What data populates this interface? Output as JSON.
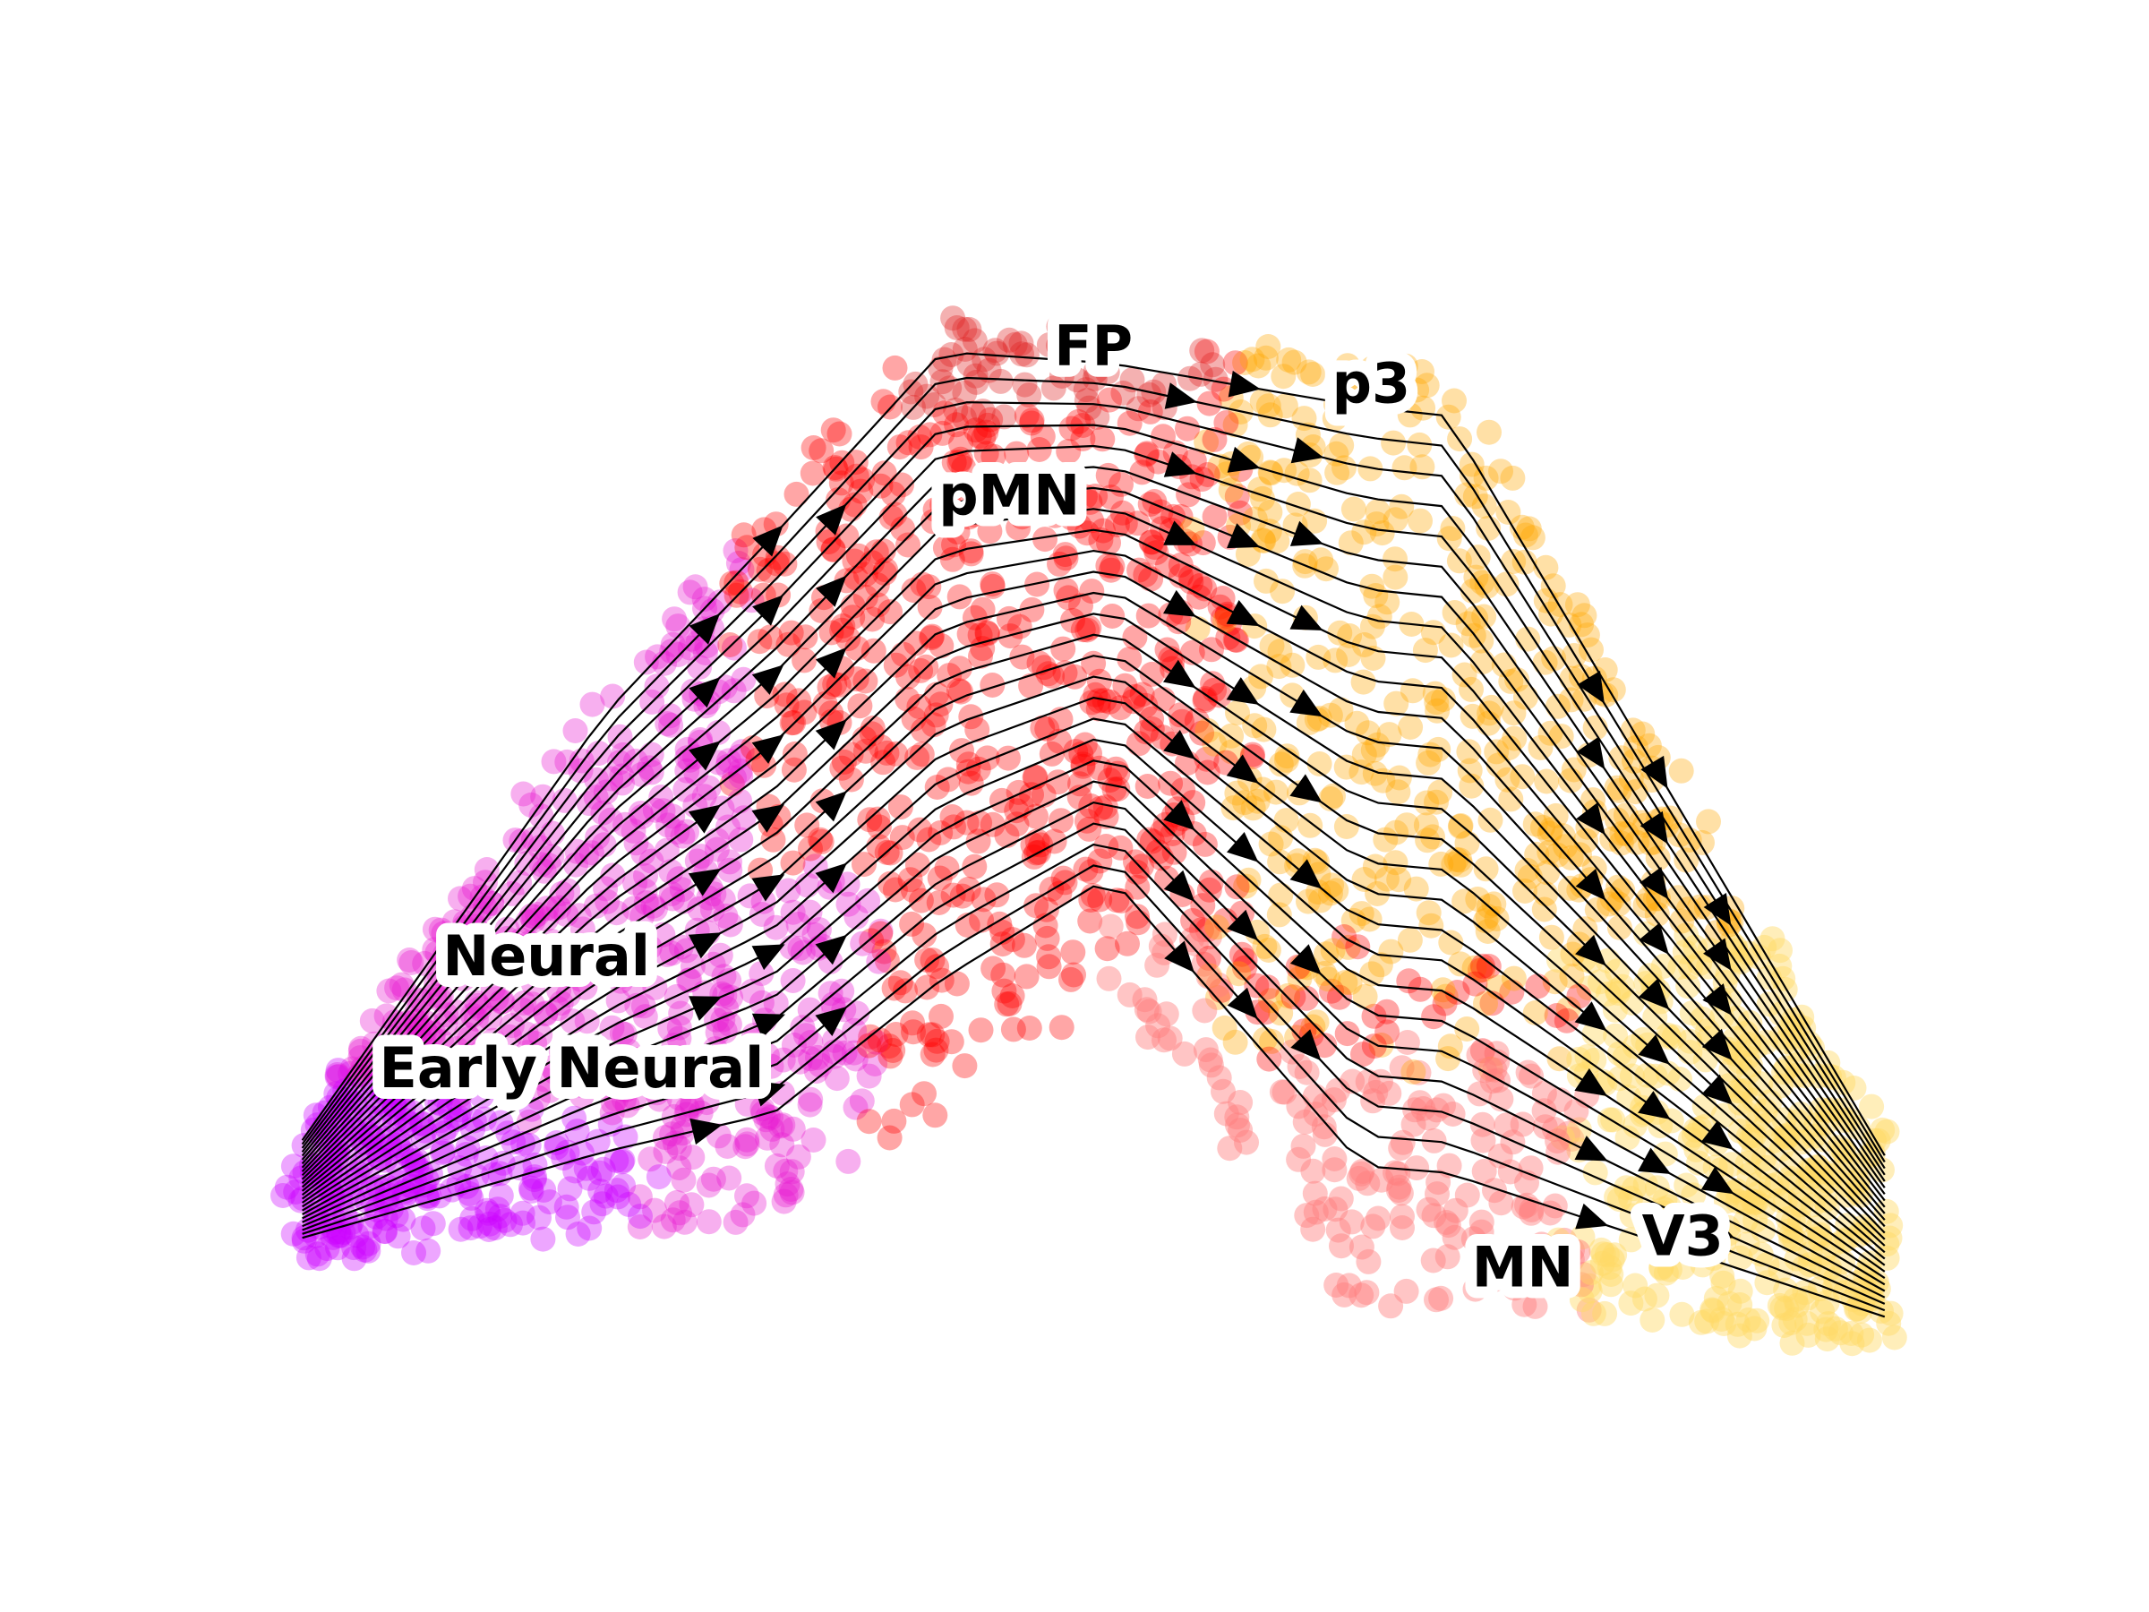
{
  "chart_data": {
    "type": "scatter",
    "title": "",
    "xlabel": "",
    "ylabel": "",
    "axes_visible": false,
    "grid": false,
    "legend": "none",
    "overlay": "velocity streamlines with arrowheads",
    "xlim": [
      0,
      100
    ],
    "ylim": [
      0,
      100
    ],
    "clusters": [
      {
        "name": "Early Neural",
        "color": "#cc00ff",
        "center": [
          14,
          23
        ]
      },
      {
        "name": "Neural",
        "color": "#e81bd1",
        "center": [
          22,
          38
        ]
      },
      {
        "name": "pMN",
        "color": "#ff0000",
        "center": [
          38,
          62
        ]
      },
      {
        "name": "FP",
        "color": "#e02020",
        "center": [
          46,
          84
        ]
      },
      {
        "name": "p3",
        "color": "#ffa500",
        "center": [
          68,
          76
        ]
      },
      {
        "name": "MN",
        "color": "#ff7f7f",
        "center": [
          70,
          14
        ]
      },
      {
        "name": "V3",
        "color": "#ffd966",
        "center": [
          84,
          18
        ]
      }
    ],
    "labels": [
      {
        "text": "FP",
        "x": 49,
        "y": 87
      },
      {
        "text": "p3",
        "x": 65.5,
        "y": 84
      },
      {
        "text": "pMN",
        "x": 44,
        "y": 75
      },
      {
        "text": "Neural",
        "x": 16.5,
        "y": 38
      },
      {
        "text": "Early Neural",
        "x": 18,
        "y": 29
      },
      {
        "text": "MN",
        "x": 74.5,
        "y": 13
      },
      {
        "text": "V3",
        "x": 84,
        "y": 15.5
      }
    ]
  }
}
